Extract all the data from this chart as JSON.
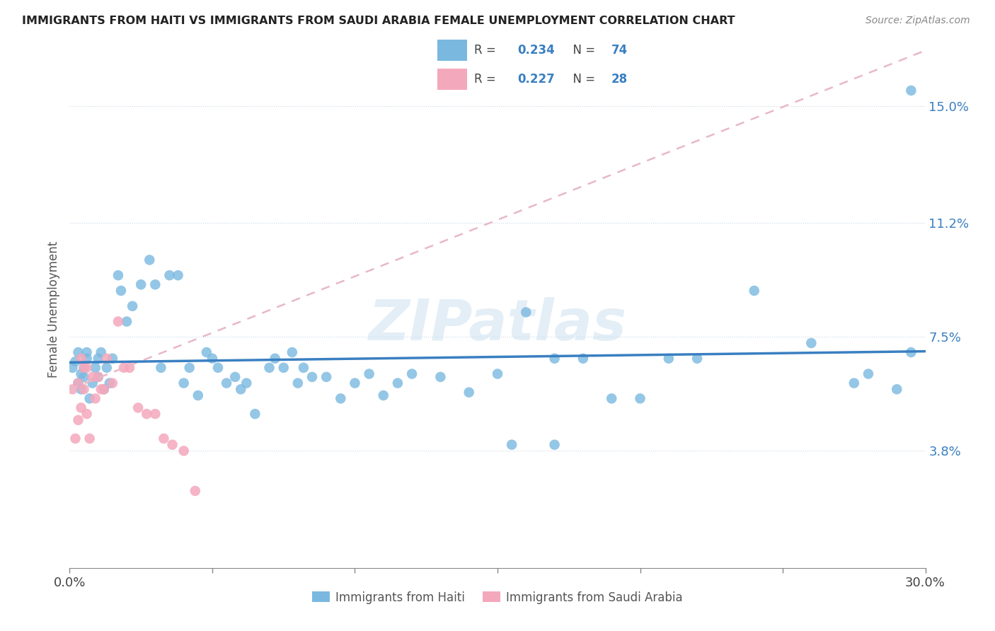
{
  "title": "IMMIGRANTS FROM HAITI VS IMMIGRANTS FROM SAUDI ARABIA FEMALE UNEMPLOYMENT CORRELATION CHART",
  "source": "Source: ZipAtlas.com",
  "ylabel": "Female Unemployment",
  "x_min": 0.0,
  "x_max": 0.3,
  "y_min": 0.0,
  "y_max": 0.168,
  "y_ticks": [
    0.038,
    0.075,
    0.112,
    0.15
  ],
  "y_tick_labels": [
    "3.8%",
    "7.5%",
    "11.2%",
    "15.0%"
  ],
  "x_ticks": [
    0.0,
    0.05,
    0.1,
    0.15,
    0.2,
    0.25,
    0.3
  ],
  "x_tick_labels": [
    "0.0%",
    "",
    "",
    "",
    "",
    "",
    "30.0%"
  ],
  "legend1_R": "0.234",
  "legend1_N": "74",
  "legend2_R": "0.227",
  "legend2_N": "28",
  "haiti_color": "#7ab8e0",
  "haiti_color_dark": "#3a7fc1",
  "saudi_color": "#f4a8bc",
  "saudi_color_dark": "#d45a80",
  "trend_haiti_color": "#3a7fc1",
  "trend_saudi_color": "#d4a0b0",
  "watermark": "ZIPatlas",
  "haiti_x": [
    0.001,
    0.002,
    0.003,
    0.003,
    0.004,
    0.004,
    0.005,
    0.005,
    0.006,
    0.006,
    0.007,
    0.008,
    0.009,
    0.01,
    0.01,
    0.011,
    0.012,
    0.013,
    0.014,
    0.015,
    0.017,
    0.018,
    0.02,
    0.022,
    0.025,
    0.028,
    0.03,
    0.032,
    0.035,
    0.038,
    0.04,
    0.042,
    0.045,
    0.048,
    0.05,
    0.052,
    0.055,
    0.058,
    0.06,
    0.062,
    0.065,
    0.07,
    0.072,
    0.075,
    0.078,
    0.08,
    0.082,
    0.085,
    0.09,
    0.095,
    0.1,
    0.105,
    0.11,
    0.115,
    0.12,
    0.13,
    0.14,
    0.15,
    0.16,
    0.17,
    0.18,
    0.2,
    0.22,
    0.24,
    0.26,
    0.275,
    0.28,
    0.29,
    0.295,
    0.155,
    0.17,
    0.19,
    0.21,
    0.295
  ],
  "haiti_y": [
    0.065,
    0.067,
    0.06,
    0.07,
    0.063,
    0.058,
    0.065,
    0.062,
    0.07,
    0.068,
    0.055,
    0.06,
    0.065,
    0.062,
    0.068,
    0.07,
    0.058,
    0.065,
    0.06,
    0.068,
    0.095,
    0.09,
    0.08,
    0.085,
    0.092,
    0.1,
    0.092,
    0.065,
    0.095,
    0.095,
    0.06,
    0.065,
    0.056,
    0.07,
    0.068,
    0.065,
    0.06,
    0.062,
    0.058,
    0.06,
    0.05,
    0.065,
    0.068,
    0.065,
    0.07,
    0.06,
    0.065,
    0.062,
    0.062,
    0.055,
    0.06,
    0.063,
    0.056,
    0.06,
    0.063,
    0.062,
    0.057,
    0.063,
    0.083,
    0.04,
    0.068,
    0.055,
    0.068,
    0.09,
    0.073,
    0.06,
    0.063,
    0.058,
    0.155,
    0.04,
    0.068,
    0.055,
    0.068,
    0.07
  ],
  "saudi_x": [
    0.001,
    0.002,
    0.003,
    0.003,
    0.004,
    0.004,
    0.005,
    0.005,
    0.006,
    0.006,
    0.007,
    0.008,
    0.009,
    0.01,
    0.011,
    0.012,
    0.013,
    0.015,
    0.017,
    0.019,
    0.021,
    0.024,
    0.027,
    0.03,
    0.033,
    0.036,
    0.04,
    0.044
  ],
  "saudi_y": [
    0.058,
    0.042,
    0.048,
    0.06,
    0.052,
    0.068,
    0.058,
    0.065,
    0.05,
    0.065,
    0.042,
    0.062,
    0.055,
    0.062,
    0.058,
    0.058,
    0.068,
    0.06,
    0.08,
    0.065,
    0.065,
    0.052,
    0.05,
    0.05,
    0.042,
    0.04,
    0.038,
    0.025
  ],
  "saudi_trend_x_start": 0.0,
  "saudi_trend_x_end": 0.3,
  "saudi_trend_y_start": 0.058,
  "saudi_trend_y_end": 0.168
}
